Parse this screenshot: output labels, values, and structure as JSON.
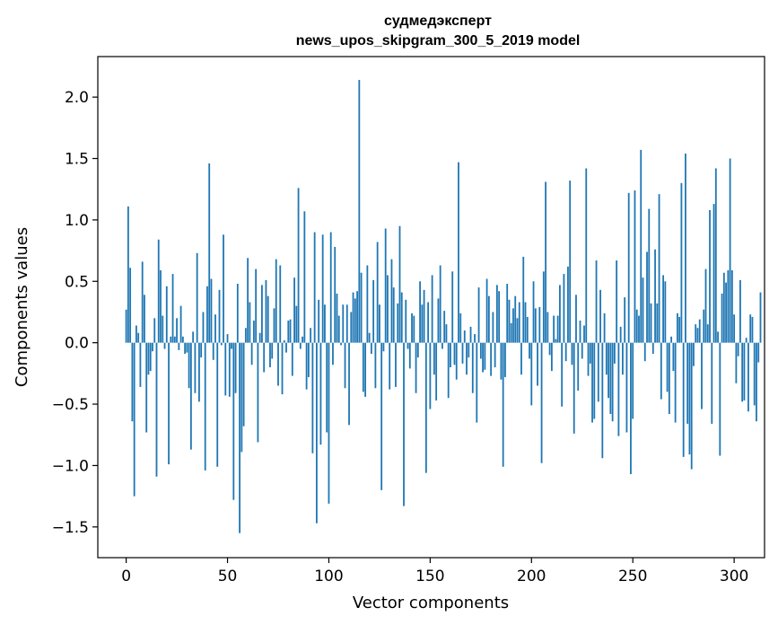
{
  "chart_data": {
    "type": "bar",
    "title": "судмедэксперт",
    "subtitle": "news_upos_skipgram_300_5_2019 model",
    "xlabel": "Vector components",
    "ylabel": "Components values",
    "xlim": [
      -14,
      315
    ],
    "ylim": [
      -1.75,
      2.33
    ],
    "xticks": [
      0,
      50,
      100,
      150,
      200,
      250,
      300
    ],
    "xtick_labels": [
      "0",
      "50",
      "100",
      "150",
      "200",
      "250",
      "300"
    ],
    "yticks": [
      -1.5,
      -1.0,
      -0.5,
      0.0,
      0.5,
      1.0,
      1.5,
      2.0
    ],
    "ytick_labels": [
      "−1.5",
      "−1.0",
      "−0.5",
      "0.0",
      "0.5",
      "1.0",
      "1.5",
      "2.0"
    ],
    "grid": false,
    "legend": "none",
    "bar_color": "#1f77b4",
    "series": [
      {
        "values": [
          0.27,
          1.11,
          0.61,
          -0.64,
          -1.25,
          0.14,
          0.08,
          -0.36,
          0.66,
          0.39,
          -0.73,
          -0.26,
          -0.23,
          -0.07,
          0.2,
          -1.09,
          0.84,
          0.59,
          0.22,
          -0.05,
          0.46,
          -0.99,
          0.05,
          0.56,
          0.05,
          0.2,
          -0.06,
          0.3,
          0.05,
          -0.09,
          -0.08,
          -0.37,
          -0.87,
          0.09,
          -0.41,
          0.73,
          -0.48,
          -0.12,
          0.25,
          -1.04,
          0.46,
          1.46,
          0.52,
          -0.14,
          0.23,
          -1.01,
          0.43,
          -0.02,
          0.88,
          -0.43,
          0.07,
          -0.44,
          -0.05,
          -1.28,
          -0.41,
          0.48,
          -1.55,
          -0.89,
          -0.68,
          0.12,
          0.69,
          0.33,
          -0.18,
          0.18,
          0.6,
          -0.81,
          0.08,
          0.47,
          -0.24,
          0.51,
          0.38,
          -0.2,
          -0.13,
          0.28,
          0.68,
          -0.35,
          0.63,
          -0.42,
          0.02,
          -0.08,
          0.18,
          0.19,
          -0.27,
          0.53,
          0.3,
          1.26,
          -0.05,
          0.05,
          1.07,
          -0.38,
          -0.28,
          0.12,
          -0.9,
          0.9,
          -1.47,
          0.35,
          -0.83,
          0.88,
          0.31,
          -0.73,
          -1.31,
          0.9,
          -0.18,
          0.78,
          0.4,
          0.22,
          -0.02,
          0.31,
          -0.37,
          0.31,
          -0.67,
          0.25,
          0.41,
          0.36,
          0.42,
          2.14,
          0.57,
          -0.4,
          -0.44,
          0.63,
          0.08,
          -0.09,
          0.51,
          -0.37,
          0.82,
          0.31,
          -1.2,
          -0.07,
          0.93,
          0.55,
          -0.38,
          0.68,
          0.45,
          -0.36,
          0.32,
          0.95,
          0.41,
          -1.33,
          0.35,
          -0.05,
          -0.21,
          0.24,
          0.22,
          -0.41,
          -0.12,
          0.5,
          0.31,
          0.43,
          -1.06,
          0.33,
          -0.54,
          0.55,
          -0.26,
          -0.47,
          0.36,
          0.63,
          -0.05,
          0.26,
          0.15,
          -0.45,
          -0.2,
          0.58,
          -0.18,
          -0.3,
          1.47,
          0.24,
          -0.17,
          0.1,
          -0.26,
          -0.12,
          0.13,
          -0.41,
          0.07,
          -0.65,
          0.45,
          -0.13,
          -0.24,
          -0.22,
          0.52,
          0.38,
          -0.27,
          0.25,
          -0.2,
          0.47,
          0.42,
          -0.3,
          -1.01,
          -0.28,
          0.48,
          0.35,
          0.16,
          0.28,
          0.38,
          0.2,
          0.33,
          -0.26,
          0.7,
          0.33,
          0.21,
          -0.13,
          -0.51,
          0.5,
          0.28,
          -0.35,
          0.29,
          -0.98,
          0.58,
          1.31,
          0.25,
          -0.1,
          -0.23,
          0.22,
          0.03,
          0.22,
          0.47,
          -0.52,
          0.56,
          -0.15,
          0.62,
          1.32,
          -0.18,
          -0.74,
          0.39,
          -0.39,
          0.18,
          -0.13,
          0.14,
          1.42,
          -0.27,
          -0.17,
          -0.65,
          -0.62,
          0.67,
          -0.48,
          0.43,
          -0.94,
          0.24,
          -0.26,
          -0.45,
          -0.58,
          -0.64,
          -0.17,
          0.67,
          -0.76,
          0.13,
          -0.26,
          0.37,
          -0.73,
          1.22,
          -1.07,
          -0.62,
          1.24,
          0.27,
          0.22,
          1.57,
          0.53,
          -0.15,
          0.74,
          1.09,
          0.32,
          -0.09,
          0.76,
          0.32,
          1.21,
          -0.46,
          0.55,
          0.5,
          -0.4,
          -0.58,
          0.05,
          -0.23,
          -0.65,
          0.24,
          0.21,
          1.3,
          -0.93,
          1.54,
          -0.66,
          -0.91,
          -1.03,
          -0.19,
          0.15,
          0.12,
          0.19,
          -0.54,
          0.27,
          0.6,
          0.15,
          1.08,
          -0.66,
          1.13,
          1.42,
          0.09,
          -0.92,
          0.4,
          0.57,
          0.49,
          0.59,
          1.5,
          0.59,
          0.23,
          -0.33,
          -0.11,
          0.51,
          -0.48,
          -0.47,
          0.04,
          -0.56,
          0.23,
          0.21,
          -0.51,
          -0.64,
          -0.16,
          0.41
        ]
      }
    ]
  }
}
